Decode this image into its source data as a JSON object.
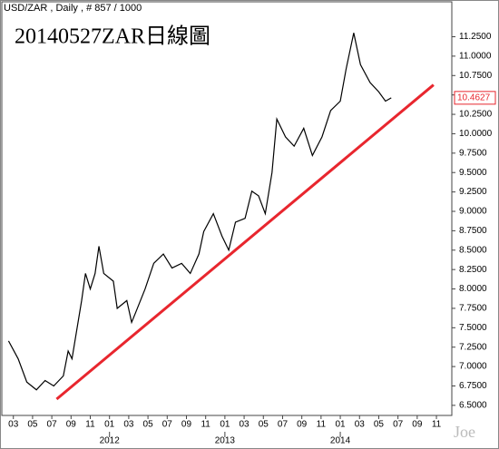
{
  "chart_data": {
    "type": "line",
    "header": "USD/ZAR , Daily , # 857 / 1000",
    "title": "20140527ZAR日線圖",
    "watermark": "Joe",
    "color": "#000000",
    "x": [
      -0.5,
      0.5,
      1.4,
      2.4,
      3.3,
      4.2,
      5.2,
      5.7,
      6.1,
      7.1,
      7.5,
      8.0,
      8.5,
      8.9,
      9.4,
      10.4,
      10.8,
      11.8,
      12.3,
      12.7,
      13.7,
      14.6,
      15.6,
      16.5,
      17.5,
      18.4,
      19.3,
      19.8,
      20.8,
      21.7,
      22.4,
      23.1,
      24.1,
      24.8,
      25.5,
      26.2,
      26.9,
      27.4,
      28.3,
      29.2,
      30.2,
      31.1,
      32.1,
      33.0,
      34.0,
      34.6,
      35.4,
      36.1,
      37.1,
      38.0,
      38.7,
      39.3
    ],
    "values": [
      7.33,
      7.1,
      6.8,
      6.7,
      6.82,
      6.75,
      6.88,
      7.2,
      7.1,
      7.85,
      8.2,
      8.0,
      8.2,
      8.55,
      8.2,
      8.1,
      7.75,
      7.85,
      7.57,
      7.69,
      8.0,
      8.33,
      8.45,
      8.27,
      8.33,
      8.2,
      8.45,
      8.74,
      8.97,
      8.68,
      8.5,
      8.86,
      8.91,
      9.26,
      9.2,
      8.97,
      9.5,
      10.19,
      9.96,
      9.84,
      10.07,
      9.72,
      9.96,
      10.3,
      10.42,
      10.83,
      11.3,
      10.89,
      10.66,
      10.54,
      10.42,
      10.4627
    ],
    "last_value": 10.4627,
    "last_color": "#e8262e",
    "trendline": {
      "x": [
        4.5,
        43.7
      ],
      "values": [
        6.58,
        10.63
      ],
      "color": "#e8262e"
    },
    "xlim": [
      -1.2,
      45.6
    ],
    "ylim": [
      6.37,
      11.7
    ],
    "xticks": [
      {
        "value": 0,
        "label": "03"
      },
      {
        "value": 2,
        "label": "05"
      },
      {
        "value": 4,
        "label": "07"
      },
      {
        "value": 6,
        "label": "09"
      },
      {
        "value": 8,
        "label": "11"
      },
      {
        "value": 10,
        "label": "01"
      },
      {
        "value": 12,
        "label": "03"
      },
      {
        "value": 14,
        "label": "05"
      },
      {
        "value": 16,
        "label": "07"
      },
      {
        "value": 18,
        "label": "09"
      },
      {
        "value": 20,
        "label": "11"
      },
      {
        "value": 22,
        "label": "01"
      },
      {
        "value": 24,
        "label": "03"
      },
      {
        "value": 26,
        "label": "05"
      },
      {
        "value": 28,
        "label": "07"
      },
      {
        "value": 30,
        "label": "09"
      },
      {
        "value": 32,
        "label": "11"
      },
      {
        "value": 34,
        "label": "01"
      },
      {
        "value": 36,
        "label": "03"
      },
      {
        "value": 38,
        "label": "05"
      },
      {
        "value": 40,
        "label": "07"
      },
      {
        "value": 42,
        "label": "09"
      },
      {
        "value": 44,
        "label": "11"
      }
    ],
    "year_labels": [
      {
        "value": 10,
        "label": "2012"
      },
      {
        "value": 22,
        "label": "2013"
      },
      {
        "value": 34,
        "label": "2014"
      }
    ],
    "yticks": [
      {
        "value": 6.5,
        "label": "6.5000"
      },
      {
        "value": 6.75,
        "label": "6.7500"
      },
      {
        "value": 7,
        "label": "7.0000"
      },
      {
        "value": 7.25,
        "label": "7.2500"
      },
      {
        "value": 7.5,
        "label": "7.5000"
      },
      {
        "value": 7.75,
        "label": "7.7500"
      },
      {
        "value": 8,
        "label": "8.0000"
      },
      {
        "value": 8.25,
        "label": "8.2500"
      },
      {
        "value": 8.5,
        "label": "8.5000"
      },
      {
        "value": 8.75,
        "label": "8.7500"
      },
      {
        "value": 9,
        "label": "9.0000"
      },
      {
        "value": 9.25,
        "label": "9.2500"
      },
      {
        "value": 9.5,
        "label": "9.5000"
      },
      {
        "value": 9.75,
        "label": "9.7500"
      },
      {
        "value": 10,
        "label": "10.0000"
      },
      {
        "value": 10.25,
        "label": "10.2500"
      },
      {
        "value": 10.5,
        "label": "10.5000"
      },
      {
        "value": 10.75,
        "label": "10.7500"
      },
      {
        "value": 11,
        "label": "11.0000"
      },
      {
        "value": 11.25,
        "label": "11.2500"
      }
    ]
  }
}
